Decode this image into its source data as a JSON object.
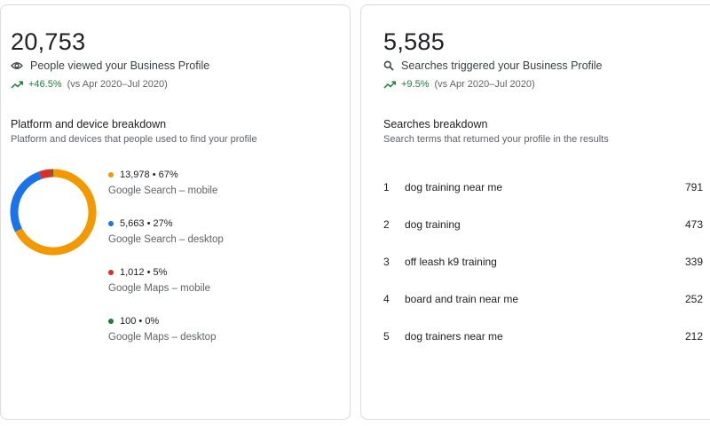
{
  "views_card": {
    "total": "20,753",
    "metric_label": "People viewed your Business Profile",
    "trend_value": "+46.5%",
    "trend_compare": "(vs Apr 2020–Jul 2020)",
    "section_title": "Platform and device breakdown",
    "section_subtitle": "Platform and devices that people used to find your profile",
    "icon": "eye-icon",
    "breakdown": [
      {
        "stat": "13,978 • 67%",
        "label": "Google Search – mobile",
        "value": 13978,
        "color": "#f29900"
      },
      {
        "stat": "5,663 • 27%",
        "label": "Google Search – desktop",
        "value": 5663,
        "color": "#1a73e8"
      },
      {
        "stat": "1,012 • 5%",
        "label": "Google Maps – mobile",
        "value": 1012,
        "color": "#d93025"
      },
      {
        "stat": "100 • 0%",
        "label": "Google Maps – desktop",
        "value": 100,
        "color": "#188038"
      }
    ]
  },
  "searches_card": {
    "total": "5,585",
    "metric_label": "Searches triggered your Business Profile",
    "trend_value": "+9.5%",
    "trend_compare": "(vs Apr 2020–Jul 2020)",
    "section_title": "Searches breakdown",
    "section_subtitle": "Search terms that returned your profile in the results",
    "icon": "search-icon",
    "terms": [
      {
        "rank": "1",
        "term": "dog training near me",
        "count": "791"
      },
      {
        "rank": "2",
        "term": "dog training",
        "count": "473"
      },
      {
        "rank": "3",
        "term": "off leash k9 training",
        "count": "339"
      },
      {
        "rank": "4",
        "term": "board and train near me",
        "count": "252"
      },
      {
        "rank": "5",
        "term": "dog trainers near me",
        "count": "212"
      }
    ]
  },
  "colors": {
    "trend_positive": "#188038",
    "card_border": "#dadce0"
  }
}
